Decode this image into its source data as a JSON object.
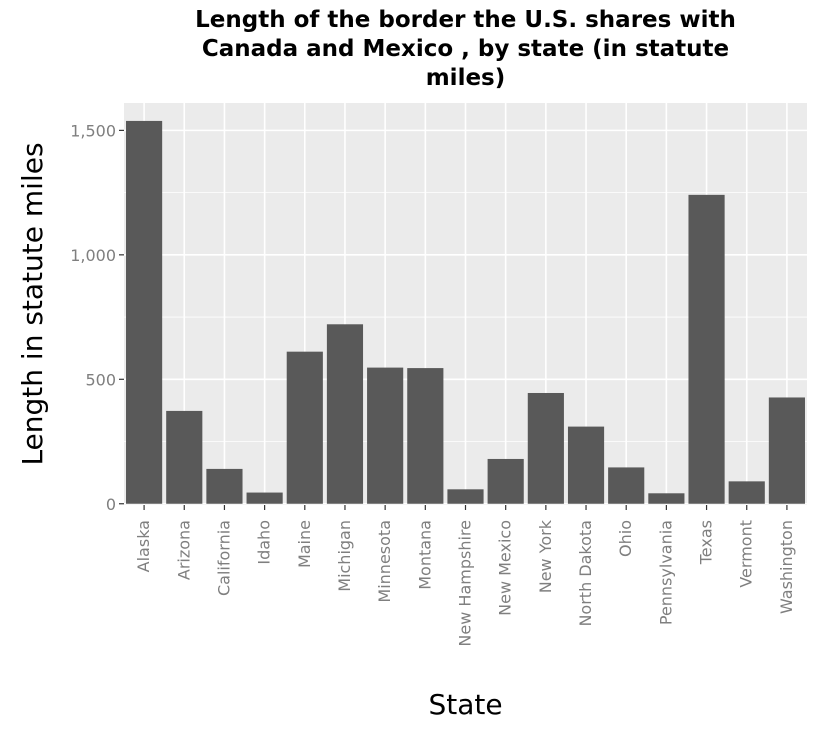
{
  "chart_data": {
    "type": "bar",
    "title_lines": [
      "Length of the border the U.S. shares with",
      "Canada and Mexico , by state (in statute",
      "miles)"
    ],
    "xlabel": "State",
    "ylabel": "Length in statute miles",
    "categories": [
      "Alaska",
      "Arizona",
      "California",
      "Idaho",
      "Maine",
      "Michigan",
      "Minnesota",
      "Montana",
      "New Hampshire",
      "New Mexico",
      "New York",
      "North Dakota",
      "Ohio",
      "Pennsylvania",
      "Texas",
      "Vermont",
      "Washington"
    ],
    "values": [
      1538,
      373,
      140,
      45,
      611,
      721,
      547,
      545,
      58,
      180,
      445,
      310,
      146,
      42,
      1241,
      90,
      427
    ],
    "yticks": [
      {
        "value": 0,
        "label": "0"
      },
      {
        "value": 500,
        "label": "500"
      },
      {
        "value": 1000,
        "label": "1,000"
      },
      {
        "value": 1500,
        "label": "1,500"
      }
    ],
    "ylim": [
      -5,
      1610
    ],
    "grid": true,
    "colors": {
      "bar": "#595959",
      "panel": "#ebebeb",
      "grid": "#ffffff",
      "tick_text": "#7f7f7f"
    }
  }
}
